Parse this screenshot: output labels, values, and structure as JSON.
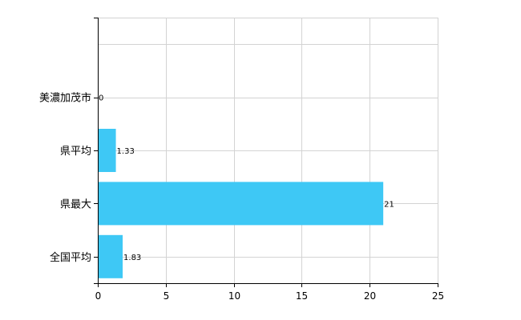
{
  "chart_data": {
    "type": "bar",
    "orientation": "horizontal",
    "categories": [
      "美濃加茂市",
      "県平均",
      "県最大",
      "全国平均"
    ],
    "values": [
      0,
      1.33,
      21,
      1.83
    ],
    "data_labels": [
      "0",
      "1.33",
      "21",
      "1.83"
    ],
    "title": "",
    "xlabel": "",
    "ylabel": "",
    "xlim": [
      0,
      25
    ],
    "x_ticks": [
      "0",
      "5",
      "10",
      "15",
      "20",
      "25"
    ],
    "grid": true,
    "legend": "none",
    "bar_color": "#3ec8f5"
  }
}
